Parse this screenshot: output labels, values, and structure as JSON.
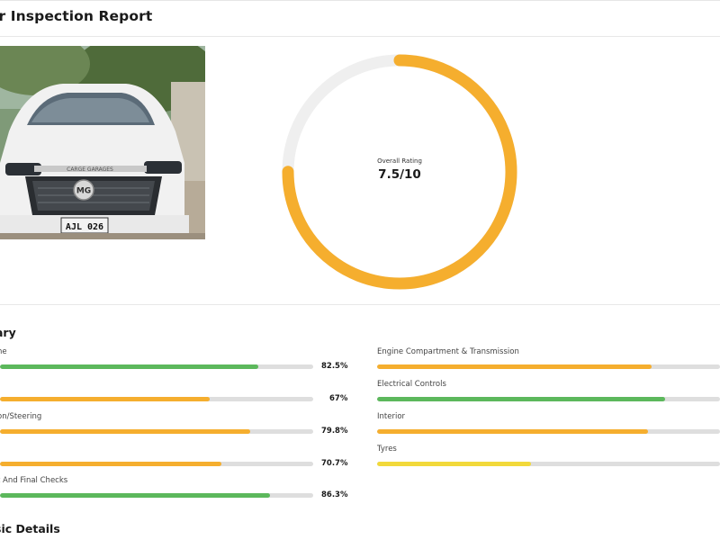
{
  "report": {
    "title": "ar Inspection Report"
  },
  "photo": {
    "plate_text": "AJL 026",
    "badge_text": "MG",
    "bar_text": "CARGE GARAGES"
  },
  "rating": {
    "label": "Overall Rating",
    "value_text": "7.5/10",
    "score": 7.5,
    "max": 10,
    "color": "#f5ae2e"
  },
  "summary": {
    "title": "ary",
    "left": [
      {
        "label": "ne",
        "value": 82.5,
        "value_text": "82.5%",
        "color": "#5cb85c"
      },
      {
        "label": "",
        "value": 67,
        "value_text": "67%",
        "color": "#f5ae2e"
      },
      {
        "label": "on/Steering",
        "value": 79.8,
        "value_text": "79.8%",
        "color": "#f5ae2e"
      },
      {
        "label": "",
        "value": 70.7,
        "value_text": "70.7%",
        "color": "#f5ae2e"
      },
      {
        "label": "t And Final Checks",
        "value": 86.3,
        "value_text": "86.3%",
        "color": "#5cb85c"
      }
    ],
    "right": [
      {
        "label": "Engine Compartment & Transmission",
        "value": 80,
        "color": "#f5ae2e"
      },
      {
        "label": "Electrical Controls",
        "value": 84,
        "color": "#5cb85c"
      },
      {
        "label": "Interior",
        "value": 79,
        "color": "#f5ae2e"
      },
      {
        "label": "Tyres",
        "value": 45,
        "color": "#f2d93a"
      }
    ]
  },
  "basic": {
    "title": "sic Details"
  }
}
